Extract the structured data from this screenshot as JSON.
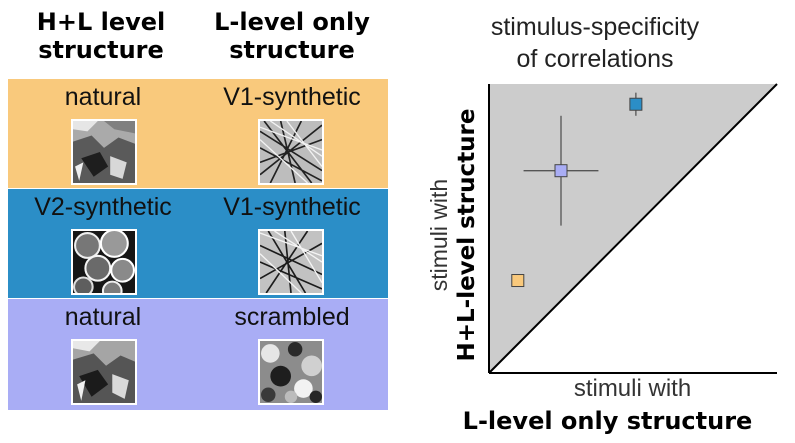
{
  "headers": {
    "left": [
      "H+L level",
      "structure"
    ],
    "right": [
      "L-level only",
      "structure"
    ]
  },
  "rows": [
    {
      "left_label": "natural",
      "right_label": "V1-synthetic",
      "color": "#f9c97c",
      "left_thumb": "natural-texture",
      "right_thumb": "v1-synthetic-texture"
    },
    {
      "left_label": "V2-synthetic",
      "right_label": "V1-synthetic",
      "color": "#2b8ec7",
      "left_thumb": "v2-synthetic-texture",
      "right_thumb": "v1-synthetic-texture"
    },
    {
      "left_label": "natural",
      "right_label": "scrambled",
      "color": "#a9adf5",
      "left_thumb": "natural-texture",
      "right_thumb": "scrambled-texture"
    }
  ],
  "plot": {
    "title": [
      "stimulus-specificity",
      "of correlations"
    ],
    "ylabel": [
      "stimuli with",
      "H+L-level structure"
    ],
    "xlabel": [
      "stimuli with",
      "L-level only structure"
    ],
    "diagonal": "identity-line",
    "shade_color": "#cccccc"
  },
  "chart_data": {
    "type": "scatter",
    "xlim": [
      0,
      1
    ],
    "ylim": [
      0,
      1
    ],
    "grid": false,
    "points": [
      {
        "x": 0.51,
        "y": 0.93,
        "color": "#2b8ec7",
        "xerr": 0.02,
        "yerr": 0.04
      },
      {
        "x": 0.25,
        "y": 0.7,
        "color": "#a9adf5",
        "xerr": 0.13,
        "yerr": 0.19
      },
      {
        "x": 0.1,
        "y": 0.32,
        "color": "#f9c97c",
        "xerr": 0,
        "yerr": 0
      }
    ]
  }
}
